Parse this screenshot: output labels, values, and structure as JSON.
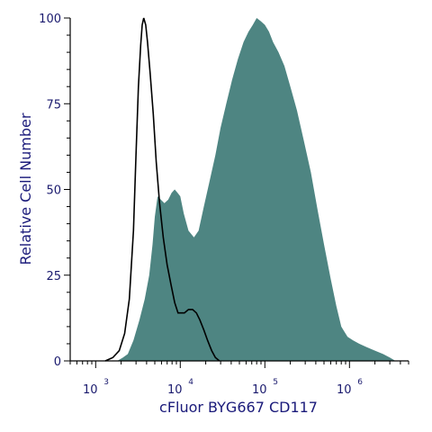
{
  "chart_data": {
    "type": "area",
    "xlabel": "cFluor BYG667 CD117",
    "ylabel": "Relative Cell Number",
    "x_scale": "log",
    "xlim": [
      500,
      5000000
    ],
    "ylim": [
      0,
      100
    ],
    "x_ticks": [
      {
        "value": 1000,
        "base": "10",
        "exp": "3"
      },
      {
        "value": 10000,
        "base": "10",
        "exp": "4"
      },
      {
        "value": 100000,
        "base": "10",
        "exp": "5"
      },
      {
        "value": 1000000,
        "base": "10",
        "exp": "6"
      }
    ],
    "y_ticks": [
      0,
      25,
      50,
      75,
      100
    ],
    "grid": false,
    "series": [
      {
        "style": "filled",
        "color": "#4e8582",
        "points": [
          [
            1800,
            0
          ],
          [
            2100,
            1
          ],
          [
            2400,
            2
          ],
          [
            2800,
            6
          ],
          [
            3300,
            12
          ],
          [
            3800,
            18
          ],
          [
            4300,
            25
          ],
          [
            4700,
            34
          ],
          [
            5000,
            42
          ],
          [
            5400,
            48
          ],
          [
            5900,
            47
          ],
          [
            6500,
            46
          ],
          [
            7200,
            47
          ],
          [
            7900,
            49
          ],
          [
            8600,
            50
          ],
          [
            9300,
            49
          ],
          [
            10000,
            48
          ],
          [
            11000,
            43
          ],
          [
            12500,
            38
          ],
          [
            14500,
            36
          ],
          [
            16500,
            38
          ],
          [
            19000,
            45
          ],
          [
            22000,
            52
          ],
          [
            26000,
            60
          ],
          [
            30000,
            68
          ],
          [
            35000,
            75
          ],
          [
            41000,
            82
          ],
          [
            48000,
            88
          ],
          [
            56000,
            93
          ],
          [
            64000,
            96
          ],
          [
            72000,
            98
          ],
          [
            80000,
            100
          ],
          [
            90000,
            99
          ],
          [
            100000,
            98
          ],
          [
            112000,
            96
          ],
          [
            125000,
            93
          ],
          [
            145000,
            90
          ],
          [
            170000,
            86
          ],
          [
            200000,
            80
          ],
          [
            240000,
            73
          ],
          [
            290000,
            64
          ],
          [
            350000,
            55
          ],
          [
            420000,
            44
          ],
          [
            500000,
            34
          ],
          [
            600000,
            24
          ],
          [
            700000,
            16
          ],
          [
            800000,
            10
          ],
          [
            950000,
            7
          ],
          [
            1100000,
            6
          ],
          [
            1300000,
            5
          ],
          [
            1600000,
            4
          ],
          [
            2000000,
            3
          ],
          [
            2500000,
            2
          ],
          [
            3000000,
            1
          ],
          [
            3500000,
            0
          ]
        ]
      },
      {
        "style": "line",
        "color": "#000000",
        "points": [
          [
            1300,
            0
          ],
          [
            1600,
            1
          ],
          [
            1900,
            3
          ],
          [
            2200,
            8
          ],
          [
            2500,
            18
          ],
          [
            2800,
            38
          ],
          [
            3000,
            60
          ],
          [
            3200,
            80
          ],
          [
            3400,
            92
          ],
          [
            3550,
            98
          ],
          [
            3700,
            100
          ],
          [
            3900,
            98
          ],
          [
            4100,
            93
          ],
          [
            4400,
            84
          ],
          [
            4800,
            72
          ],
          [
            5200,
            58
          ],
          [
            5700,
            46
          ],
          [
            6300,
            36
          ],
          [
            7000,
            28
          ],
          [
            7800,
            22
          ],
          [
            8600,
            17
          ],
          [
            9400,
            14
          ],
          [
            10200,
            14
          ],
          [
            11200,
            14
          ],
          [
            12500,
            15
          ],
          [
            14000,
            15
          ],
          [
            15500,
            14
          ],
          [
            17000,
            12
          ],
          [
            19000,
            9
          ],
          [
            21000,
            6
          ],
          [
            23500,
            3
          ],
          [
            26000,
            1
          ],
          [
            29000,
            0
          ]
        ]
      }
    ]
  }
}
